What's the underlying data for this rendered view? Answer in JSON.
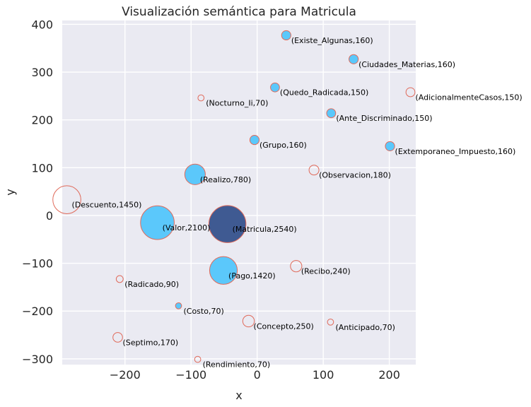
{
  "chart_data": {
    "type": "scatter",
    "title": "Visualización semántica para Matricula",
    "xlabel": "x",
    "ylabel": "y",
    "xlim": [
      -295,
      240
    ],
    "ylim": [
      -312,
      408
    ],
    "xticks": [
      -200,
      -100,
      0,
      100,
      200
    ],
    "yticks": [
      -300,
      -200,
      -100,
      0,
      100,
      200,
      300,
      400
    ],
    "grid": true,
    "colors": {
      "background": "#eaeaf2",
      "filled": "#5bc8fb",
      "highlight": "#3f5a92",
      "edge": "#e06a5a"
    },
    "points": [
      {
        "label": "(Existe_Algunas,160)",
        "x": 44,
        "y": 377,
        "size": 160,
        "style": "filled"
      },
      {
        "label": "(Ciudades_Materias,160)",
        "x": 146,
        "y": 327,
        "size": 160,
        "style": "filled"
      },
      {
        "label": "(Quedo_Radicada,150)",
        "x": 27,
        "y": 268,
        "size": 150,
        "style": "filled"
      },
      {
        "label": "(AdicionalmenteCasos,150)",
        "x": 232,
        "y": 258,
        "size": 150,
        "style": "hollow"
      },
      {
        "label": "(Nocturno_Ii,70)",
        "x": -85,
        "y": 246,
        "size": 70,
        "style": "hollow"
      },
      {
        "label": "(Ante_Discriminado,150)",
        "x": 112,
        "y": 214,
        "size": 150,
        "style": "filled"
      },
      {
        "label": "(Grupo,160)",
        "x": -4,
        "y": 158,
        "size": 160,
        "style": "filled"
      },
      {
        "label": "(Extemporaneo_Impuesto,160)",
        "x": 201,
        "y": 145,
        "size": 160,
        "style": "filled"
      },
      {
        "label": "(Observacion,180)",
        "x": 86,
        "y": 95,
        "size": 180,
        "style": "hollow"
      },
      {
        "label": "(Realizo,780)",
        "x": -94,
        "y": 86,
        "size": 780,
        "style": "filled"
      },
      {
        "label": "(Descuento,1450)",
        "x": -288,
        "y": 33,
        "size": 1450,
        "style": "hollow"
      },
      {
        "label": "(Valor,2100)",
        "x": -151,
        "y": -15,
        "size": 2100,
        "style": "filled"
      },
      {
        "label": "(Matricula,2540)",
        "x": -45,
        "y": -18,
        "size": 2540,
        "style": "highlight"
      },
      {
        "label": "(Recibo,240)",
        "x": 59,
        "y": -106,
        "size": 240,
        "style": "hollow"
      },
      {
        "label": "(Pago,1420)",
        "x": -51,
        "y": -115,
        "size": 1420,
        "style": "filled"
      },
      {
        "label": "(Radicado,90)",
        "x": -208,
        "y": -133,
        "size": 90,
        "style": "hollow"
      },
      {
        "label": "(Costo,70)",
        "x": -119,
        "y": -189,
        "size": 70,
        "style": "filled"
      },
      {
        "label": "(Concepto,250)",
        "x": -13,
        "y": -221,
        "size": 250,
        "style": "hollow"
      },
      {
        "label": "(Anticipado,70)",
        "x": 111,
        "y": -223,
        "size": 70,
        "style": "hollow"
      },
      {
        "label": "(Septimo,170)",
        "x": -211,
        "y": -255,
        "size": 170,
        "style": "hollow"
      },
      {
        "label": "(Rendimiento,70)",
        "x": -90,
        "y": -301,
        "size": 70,
        "style": "hollow"
      }
    ]
  }
}
